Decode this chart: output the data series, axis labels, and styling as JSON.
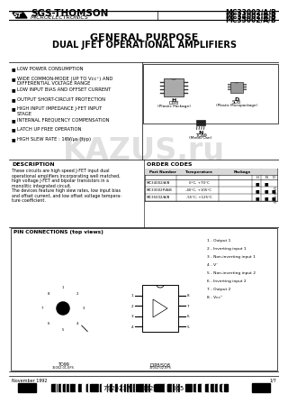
{
  "title_part_numbers": [
    "MC33002/A/B",
    "MC34002/A/B",
    "MC35002/A/B"
  ],
  "company": "SGS-THOMSON",
  "company_sub": "MICROELECTRONICS",
  "product_title": "GENERAL PURPOSE",
  "product_subtitle": "DUAL JFET OPERATIONAL AMPLIFIERS",
  "features": [
    "LOW POWER CONSUMPTION",
    "WIDE COMMON-MODE (UP TO Vcc⁺) AND\nDIFFERENTIAL VOLTAGE RANGE",
    "LOW INPUT BIAS AND OFFSET CURRENT",
    "OUTPUT SHORT-CIRCUIT PROTECTION",
    "HIGH INPUT IMPEDANCE J-FET INPUT\nSTAGE",
    "INTERNAL FREQUENCY COMPENSATION",
    "LATCH UP FREE OPERATION",
    "HIGH SLEW RATE : 16V/μs (typ)"
  ],
  "description_title": "DESCRIPTION",
  "description_text": "These circuits are high speed J-FET input dual\noperational amplifiers incorporating well matched,\nhigh voltage J-FET and bipolar transistors in a\nmonolitic integrated circuit.\nThe devices feature high slew rates, low input bias\nand offset current, and low offset voltage tempera-\nture coefficient.",
  "order_title": "ORDER CODES",
  "order_rows": [
    [
      "MC34002/A/B",
      "0°C, +70°C",
      true,
      true,
      false
    ],
    [
      "MC33002P/A/B",
      "-40°C, +105°C",
      true,
      true,
      true
    ],
    [
      "MC35002/A/B",
      "-55°C, +125°C",
      true,
      true,
      true
    ]
  ],
  "pin_title": "PIN CONNECTIONS (top views)",
  "pin_connections": [
    "1 - Output 1",
    "2 - Inverting input 1",
    "3 - Non-inverting input 1",
    "4 - V⁻",
    "5 - Non-inverting input 2",
    "6 - Inverting input 2",
    "7 - Output 2",
    "8 - Vcc⁺"
  ],
  "to99_label": "35002-01.EPS",
  "dip_label": "35002-02.EPS",
  "footer_left": "November 1992",
  "footer_right": "1/7",
  "barcode_text": "7929237  0052992  065",
  "bg_color": "#ffffff",
  "watermark": "KAZUS.ru"
}
